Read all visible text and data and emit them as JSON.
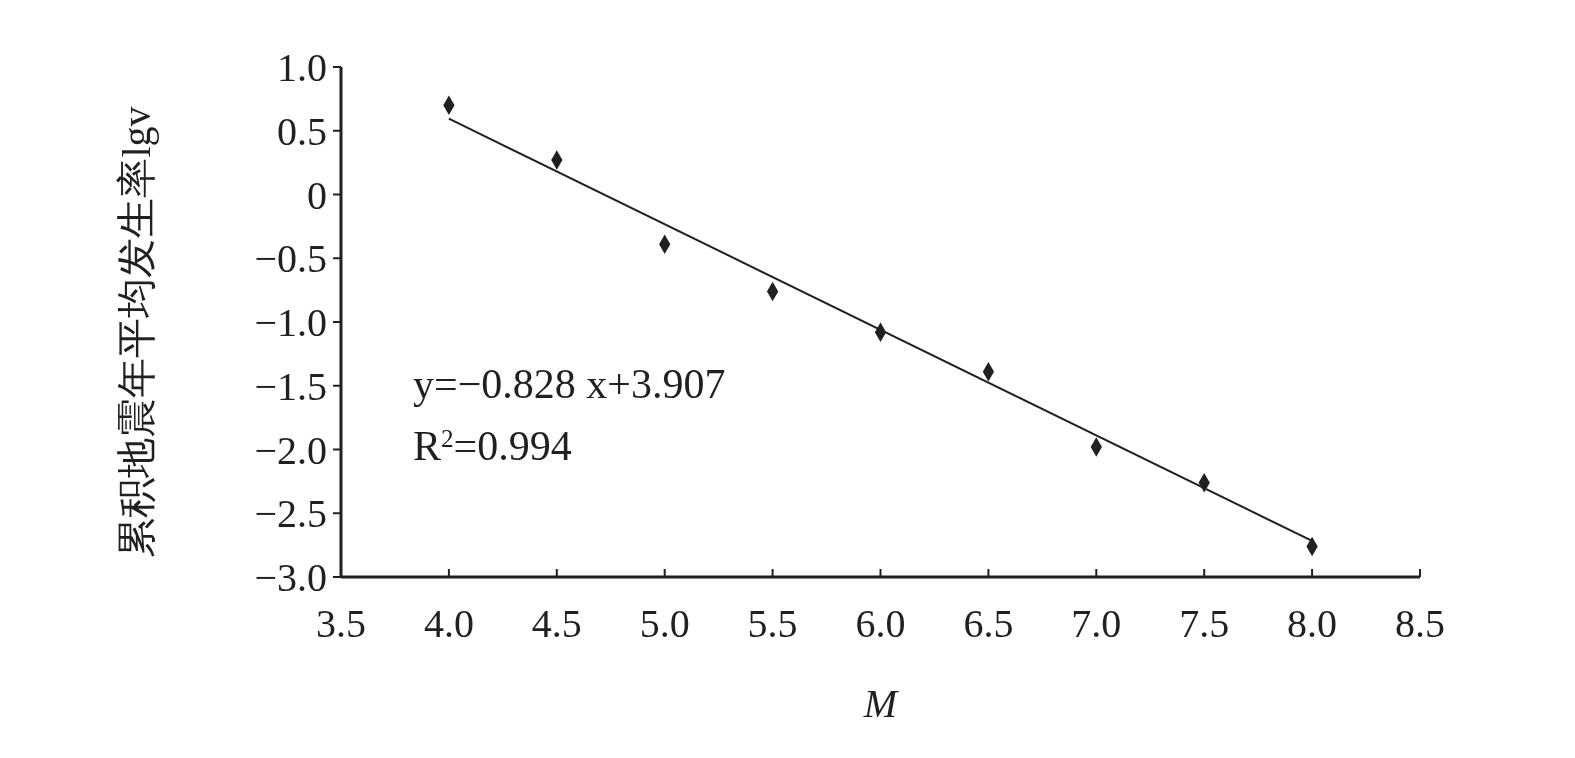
{
  "chart_data": {
    "type": "scatter",
    "xlabel": "M",
    "ylabel": "累积地震年平均发生率lgv",
    "xlim": [
      3.5,
      8.5
    ],
    "xticks": [
      {
        "value": 3.5,
        "label": "3.5"
      },
      {
        "value": 4,
        "label": "4.0"
      },
      {
        "value": 4.5,
        "label": "4.5"
      },
      {
        "value": 5,
        "label": "5.0"
      },
      {
        "value": 5.5,
        "label": "5.5"
      },
      {
        "value": 6,
        "label": "6.0"
      },
      {
        "value": 6.5,
        "label": "6.5"
      },
      {
        "value": 7,
        "label": "7.0"
      },
      {
        "value": 7.5,
        "label": "7.5"
      },
      {
        "value": 8,
        "label": "8.0"
      },
      {
        "value": 8.5,
        "label": "8.5"
      }
    ],
    "ylim": [
      -3,
      1
    ],
    "yticks": [
      {
        "value": 1,
        "label": "1.0"
      },
      {
        "value": 0.5,
        "label": "0.5"
      },
      0,
      {
        "value": -0.5,
        "label": "−0.5"
      },
      {
        "value": -1,
        "label": "−1.0"
      },
      {
        "value": -1.5,
        "label": "−1.5"
      },
      {
        "value": -2,
        "label": "−2.0"
      },
      {
        "value": -2.5,
        "label": "−2.5"
      },
      {
        "value": -3,
        "label": "−3.0"
      }
    ],
    "grid": false,
    "marker": "diamond",
    "series": [
      {
        "color": "#231f20",
        "x": [
          4,
          4.5,
          5,
          5.5,
          6,
          6.5,
          7,
          7.5,
          8
        ],
        "values": [
          0.7,
          0.27,
          -0.39,
          -0.76,
          -1.08,
          -1.39,
          -1.98,
          -2.26,
          -2.76
        ]
      },
      {
        "type": "line",
        "color": "#231f20",
        "marker": "none",
        "line_style": "solid",
        "x": [
          4,
          8
        ],
        "values": [
          0.595,
          -2.717
        ]
      }
    ],
    "annotations": [
      {
        "text": "y=−0.828 x+3.907"
      },
      {
        "text": "R$^{2}$=0.994"
      }
    ]
  }
}
